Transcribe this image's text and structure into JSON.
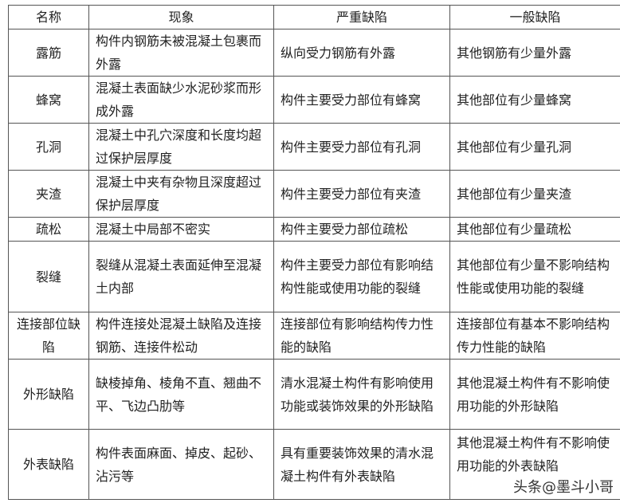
{
  "headers": [
    "名称",
    "现象",
    "严重缺陷",
    "一般缺陷"
  ],
  "rows": [
    {
      "name": "露筋",
      "phenomenon": "构件内钢筋未被混凝土包裹而外露",
      "severe": "纵向受力钢筋有外露",
      "general": "其他钢筋有少量外露"
    },
    {
      "name": "蜂窝",
      "phenomenon": "混凝土表面缺少水泥砂浆而形成外露",
      "severe": "构件主要受力部位有蜂窝",
      "general": "其他部位有少量蜂窝"
    },
    {
      "name": "孔洞",
      "phenomenon": "混凝土中孔穴深度和长度均超过保护层厚度",
      "severe": "构件主要受力部位有孔洞",
      "general": "其他部位有少量孔洞"
    },
    {
      "name": "夹渣",
      "phenomenon": "混凝土中夹有杂物且深度超过保护层厚度",
      "severe": "构件主要受力部位有夹渣",
      "general": "其他部位有少量夹渣"
    },
    {
      "name": "疏松",
      "phenomenon": "混凝土中局部不密实",
      "severe": "构件主要受力部位疏松",
      "general": "其他部位有少量疏松"
    },
    {
      "name": "裂缝",
      "phenomenon": "裂缝从混凝土表面延伸至混凝土内部",
      "severe": "构件主要受力部位有影响结构性能或使用功能的裂缝",
      "general": "其他部位有少量不影响结构性能或使用功能的裂缝"
    },
    {
      "name": "连接部位缺陷",
      "phenomenon": "构件连接处混凝土缺陷及连接钢筋、连接件松动",
      "severe": "连接部位有影响结构传力性能的缺陷",
      "general": "连接部位有基本不影响结构传力性能的缺陷"
    },
    {
      "name": "外形缺陷",
      "phenomenon": "缺棱掉角、棱角不直、翘曲不平、飞边凸肋等",
      "severe": "清水混凝土构件有影响使用功能或装饰效果的外形缺陷",
      "general": "其他混凝土构件有不影响使用功能的外形缺陷"
    },
    {
      "name": "外表缺陷",
      "phenomenon": "构件表面麻面、掉皮、起砂、沾污等",
      "severe": "具有重要装饰效果的清水混凝土构件有外表缺陷",
      "general": "其他混凝土构件有不影响使用功能的外表缺陷"
    }
  ],
  "watermark": "头条@墨斗小哥"
}
